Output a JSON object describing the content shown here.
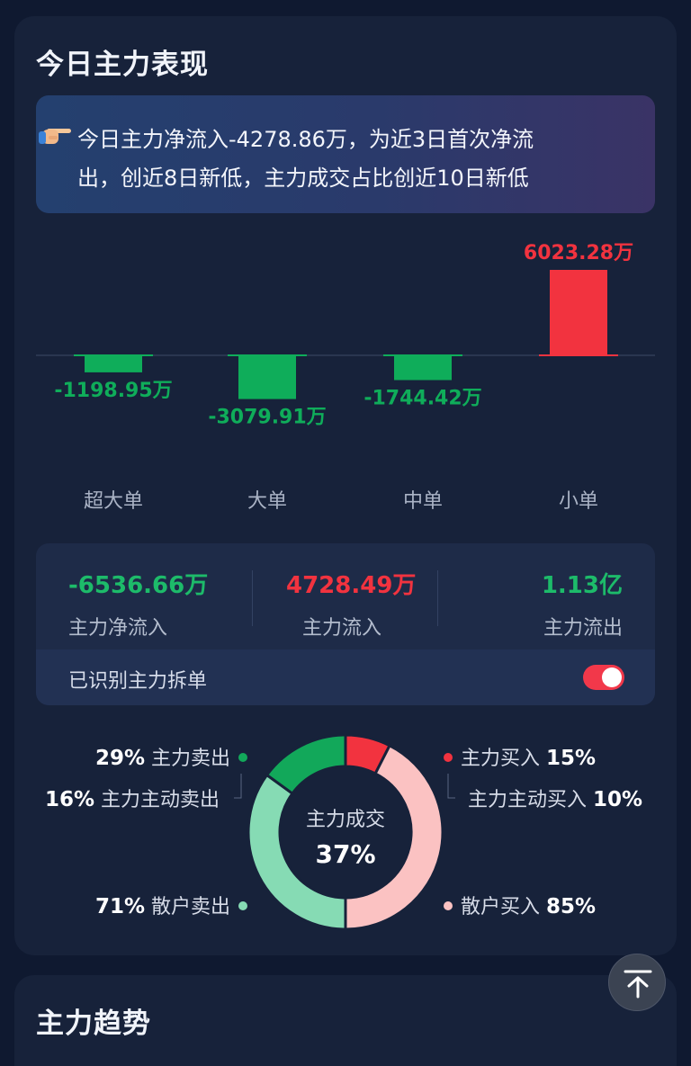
{
  "section1": {
    "title": "今日主力表现",
    "summary": {
      "line1": "今日主力净流入-4278.86万，为近3日首次净流",
      "line2": "出，创近8日新低，主力成交占比创近10日新低"
    }
  },
  "chart_data": {
    "type": "bar",
    "categories": [
      "超大单",
      "大单",
      "中单",
      "小单"
    ],
    "values": [
      -1198.95,
      -3079.91,
      -1744.42,
      6023.28
    ],
    "value_labels": [
      "-1198.95万",
      "-3079.91万",
      "-1744.42万",
      "6023.28万"
    ],
    "positive_color": "#f2333f",
    "negative_color": "#0fad5a"
  },
  "stats": {
    "net_inflow": {
      "value": "-6536.66万",
      "label": "主力净流入"
    },
    "inflow": {
      "value": "4728.49万",
      "label": "主力流入"
    },
    "outflow": {
      "value": "1.13亿",
      "label": "主力流出"
    },
    "split_label": "已识别主力拆单",
    "split_enabled": true
  },
  "donut": {
    "center_label": "主力成交",
    "center_value": "37%",
    "left": [
      {
        "pct": "29%",
        "label": "主力卖出"
      },
      {
        "pct": "16%",
        "label": "主力主动卖出"
      },
      {
        "pct": "71%",
        "label": "散户卖出"
      }
    ],
    "right": [
      {
        "label": "主力买入",
        "pct": "15%"
      },
      {
        "label": "主力主动买入",
        "pct": "10%"
      },
      {
        "label": "散户买入",
        "pct": "85%"
      }
    ],
    "colors": {
      "main_buy": "#f2333f",
      "retail_buy": "#fbc2c2",
      "main_sell": "#12a85a",
      "retail_sell": "#86dbb4"
    }
  },
  "section2": {
    "title": "主力趋势"
  }
}
